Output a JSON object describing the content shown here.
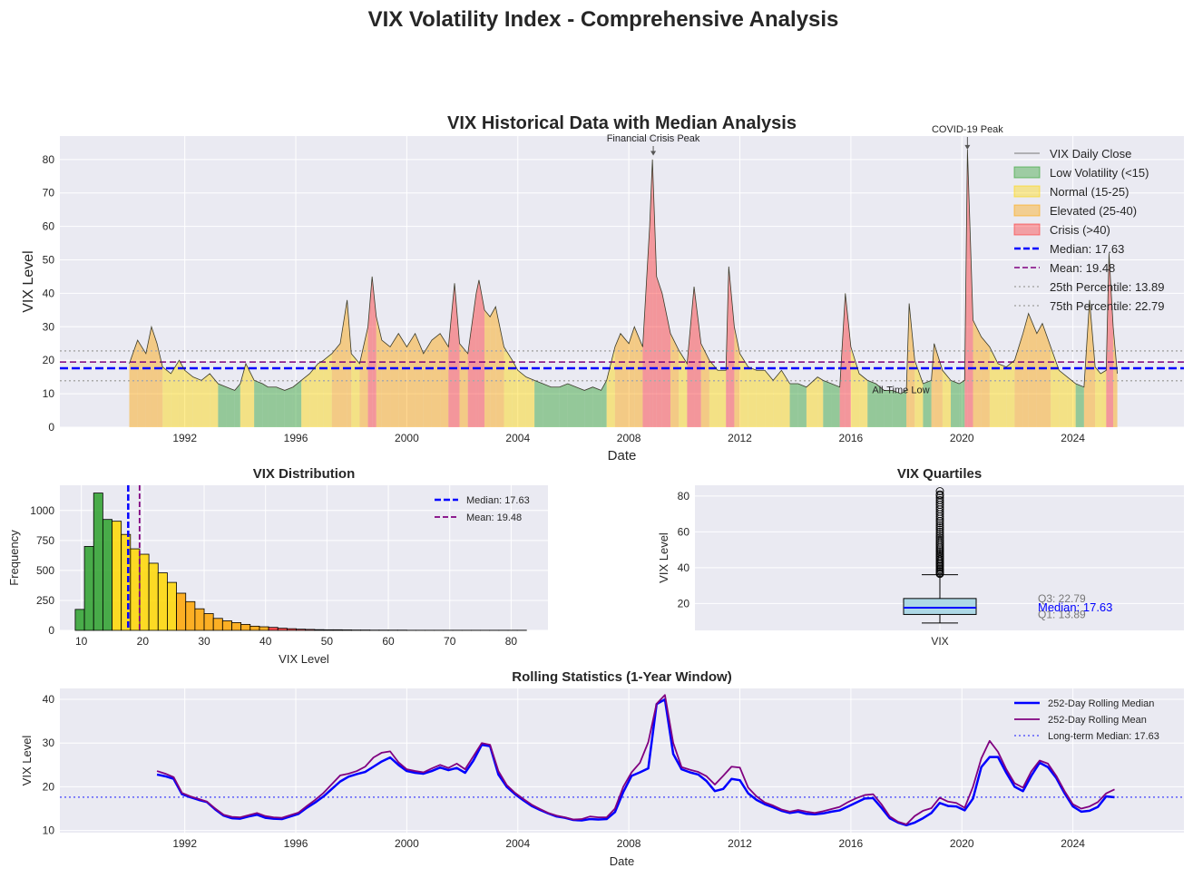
{
  "figure_title": "VIX Volatility Index - Comprehensive Analysis",
  "colors": {
    "panel_bg": "#eaeaf2",
    "grid": "#ffffff",
    "vix_line": "#3b3b2a",
    "low": "#2ca02c",
    "normal": "#ffd700",
    "elevated": "#ffa500",
    "crisis": "#ff3030",
    "median": "#0000ff",
    "mean": "#800080",
    "percentile": "#aaaaaa",
    "box_fill": "#add8e6"
  },
  "chart_data": [
    {
      "type": "line",
      "title": "VIX Historical Data with Median Analysis",
      "xlabel": "Date",
      "ylabel": "VIX Level",
      "xlim": [
        1987.5,
        2028.0
      ],
      "ylim": [
        0,
        87
      ],
      "xticks": [
        "1992",
        "1996",
        "2000",
        "2004",
        "2008",
        "2012",
        "2016",
        "2020",
        "2024"
      ],
      "yticks": [
        "0",
        "10",
        "20",
        "30",
        "40",
        "50",
        "60",
        "70",
        "80"
      ],
      "grid": true,
      "legend_position": "top-right",
      "regimes": [
        {
          "name": "Low Volatility (<15)",
          "min": 0,
          "max": 15
        },
        {
          "name": "Normal (15-25)",
          "min": 15,
          "max": 25
        },
        {
          "name": "Elevated (25-40)",
          "min": 25,
          "max": 40
        },
        {
          "name": "Crisis (>40)",
          "min": 40,
          "max": 100
        }
      ],
      "series": [
        {
          "name": "VIX Daily Close",
          "x": [
            1990.0,
            1990.3,
            1990.6,
            1990.8,
            1991.0,
            1991.2,
            1991.5,
            1991.8,
            1992.0,
            1992.3,
            1992.6,
            1992.9,
            1993.2,
            1993.5,
            1993.8,
            1994.0,
            1994.2,
            1994.5,
            1994.8,
            1995.0,
            1995.3,
            1995.6,
            1995.9,
            1996.2,
            1996.5,
            1996.8,
            1997.0,
            1997.3,
            1997.6,
            1997.85,
            1998.0,
            1998.3,
            1998.6,
            1998.75,
            1998.9,
            1999.1,
            1999.4,
            1999.7,
            2000.0,
            2000.3,
            2000.6,
            2000.9,
            2001.2,
            2001.5,
            2001.72,
            2001.9,
            2002.2,
            2002.5,
            2002.6,
            2002.8,
            2003.0,
            2003.2,
            2003.5,
            2003.8,
            2004.0,
            2004.3,
            2004.6,
            2004.9,
            2005.2,
            2005.5,
            2005.8,
            2006.1,
            2006.4,
            2006.7,
            2007.0,
            2007.2,
            2007.5,
            2007.7,
            2008.0,
            2008.2,
            2008.5,
            2008.75,
            2008.85,
            2009.0,
            2009.2,
            2009.5,
            2009.8,
            2010.1,
            2010.35,
            2010.6,
            2010.9,
            2011.2,
            2011.5,
            2011.6,
            2011.8,
            2012.0,
            2012.3,
            2012.6,
            2012.9,
            2013.2,
            2013.5,
            2013.8,
            2014.1,
            2014.4,
            2014.8,
            2015.0,
            2015.3,
            2015.6,
            2015.8,
            2016.0,
            2016.3,
            2016.6,
            2016.9,
            2017.2,
            2017.5,
            2017.8,
            2018.0,
            2018.1,
            2018.3,
            2018.6,
            2018.9,
            2019.0,
            2019.3,
            2019.6,
            2019.9,
            2020.1,
            2020.2,
            2020.4,
            2020.7,
            2021.0,
            2021.3,
            2021.6,
            2021.9,
            2022.2,
            2022.4,
            2022.7,
            2022.9,
            2023.2,
            2023.5,
            2023.8,
            2024.1,
            2024.4,
            2024.6,
            2024.8,
            2025.0,
            2025.2,
            2025.3,
            2025.45,
            2025.6
          ],
          "values": [
            19,
            26,
            22,
            30,
            25,
            18,
            16,
            20,
            17,
            15,
            14,
            16,
            13,
            12,
            11,
            13,
            19,
            14,
            13,
            12,
            12,
            11,
            12,
            14,
            16,
            19,
            20,
            22,
            25,
            38,
            22,
            19,
            30,
            45,
            33,
            26,
            24,
            28,
            24,
            28,
            22,
            26,
            28,
            24,
            43,
            25,
            22,
            40,
            44,
            35,
            33,
            36,
            24,
            20,
            17,
            15,
            14,
            13,
            12,
            12,
            13,
            12,
            11,
            12,
            11,
            14,
            24,
            28,
            25,
            30,
            24,
            60,
            80,
            45,
            40,
            28,
            23,
            19,
            42,
            25,
            20,
            17,
            17,
            48,
            30,
            22,
            18,
            17,
            17,
            14,
            17,
            13,
            13,
            12,
            15,
            14,
            13,
            12,
            40,
            24,
            16,
            14,
            13,
            11,
            11,
            10,
            11,
            37,
            20,
            13,
            14,
            25,
            17,
            14,
            13,
            14,
            83,
            32,
            27,
            24,
            19,
            18,
            20,
            28,
            34,
            28,
            31,
            24,
            17,
            15,
            13,
            12,
            38,
            18,
            16,
            17,
            52,
            30,
            16
          ]
        }
      ],
      "reference_lines": [
        {
          "name": "Median: 17.63",
          "value": 17.63,
          "style": "dashed-thick"
        },
        {
          "name": "Mean: 19.48",
          "value": 19.48,
          "style": "dashed"
        },
        {
          "name": "25th Percentile: 13.89",
          "value": 13.89,
          "style": "dotted"
        },
        {
          "name": "75th Percentile: 22.79",
          "value": 22.79,
          "style": "dotted"
        }
      ],
      "annotations": [
        {
          "text": "Financial Crisis Peak",
          "x": 2008.88,
          "y": 80.9
        },
        {
          "text": "COVID-19 Peak",
          "x": 2020.2,
          "y": 82.7
        },
        {
          "text": "All-Time Low",
          "x": 2017.8,
          "y": 9.1
        }
      ]
    },
    {
      "type": "bar",
      "title": "VIX Distribution",
      "xlabel": "VIX Level",
      "ylabel": "Frequency",
      "xlim": [
        6.5,
        86
      ],
      "ylim": [
        0,
        1210
      ],
      "xticks": [
        "10",
        "20",
        "30",
        "40",
        "50",
        "60",
        "70",
        "80"
      ],
      "yticks": [
        "0",
        "250",
        "500",
        "750",
        "1000"
      ],
      "bin_width": 1.5,
      "bin_starts": [
        9.0,
        10.5,
        12.0,
        13.5,
        15.0,
        16.5,
        18.0,
        19.5,
        21.0,
        22.5,
        24.0,
        25.5,
        27.0,
        28.5,
        30.0,
        31.5,
        33.0,
        34.5,
        36.0,
        37.5,
        39.0,
        40.5,
        42.0,
        43.5,
        45.0,
        46.5,
        48.0,
        49.5,
        51.0,
        52.5,
        54.0,
        55.5,
        57.0,
        58.5,
        60.0,
        61.5,
        63.0,
        64.5,
        66.0,
        67.5,
        69.0,
        70.5,
        72.0,
        73.5,
        75.0,
        76.5,
        78.0,
        79.5,
        81.0
      ],
      "values": [
        175,
        700,
        1145,
        925,
        910,
        800,
        680,
        635,
        560,
        480,
        400,
        310,
        240,
        180,
        140,
        100,
        80,
        65,
        50,
        35,
        30,
        25,
        18,
        14,
        10,
        8,
        6,
        5,
        5,
        4,
        3,
        3,
        2,
        2,
        2,
        2,
        1,
        1,
        1,
        1,
        1,
        1,
        1,
        1,
        1,
        1,
        1,
        1,
        1
      ],
      "legend_position": "top-right",
      "reference_lines": [
        {
          "name": "Median: 17.63",
          "value": 17.63
        },
        {
          "name": "Mean: 19.48",
          "value": 19.48
        }
      ]
    },
    {
      "type": "box",
      "title": "VIX Quartiles",
      "ylabel": "VIX Level",
      "category": "VIX",
      "ylim": [
        5,
        86
      ],
      "yticks": [
        "20",
        "40",
        "60",
        "80"
      ],
      "q1": 13.89,
      "median": 17.63,
      "q3": 22.79,
      "whisker_low": 9.1,
      "whisker_high": 36.1,
      "outliers": [
        36.5,
        37,
        37.8,
        38.5,
        39.2,
        40,
        40.8,
        41.5,
        42.3,
        43,
        43.8,
        44.6,
        45.4,
        46.2,
        47,
        47.9,
        48.8,
        49.7,
        50.6,
        51.5,
        52.5,
        53.5,
        54.5,
        55.5,
        56.6,
        57.7,
        58.8,
        60,
        61.2,
        62.4,
        63.6,
        64.8,
        66,
        67.3,
        68.6,
        69.9,
        71.2,
        72.5,
        73.8,
        75.1,
        76.4,
        77.7,
        79,
        80.3,
        80.9,
        82.7
      ],
      "labels": {
        "q3": "Q3: 22.79",
        "median": "Median: 17.63",
        "q1": "Q1: 13.89"
      }
    },
    {
      "type": "line",
      "title": "Rolling Statistics (1-Year Window)",
      "xlabel": "Date",
      "ylabel": "VIX Level",
      "xlim": [
        1987.5,
        2028.0
      ],
      "ylim": [
        9.5,
        42.5
      ],
      "xticks": [
        "1992",
        "1996",
        "2000",
        "2004",
        "2008",
        "2012",
        "2016",
        "2020",
        "2024"
      ],
      "yticks": [
        "10",
        "20",
        "30",
        "40"
      ],
      "grid": true,
      "legend_position": "top-right",
      "x": [
        1991.0,
        1991.3,
        1991.6,
        1991.9,
        1992.2,
        1992.5,
        1992.8,
        1993.1,
        1993.4,
        1993.7,
        1994.0,
        1994.3,
        1994.6,
        1994.9,
        1995.2,
        1995.5,
        1995.8,
        1996.1,
        1996.4,
        1996.7,
        1997.0,
        1997.3,
        1997.6,
        1997.9,
        1998.2,
        1998.5,
        1998.8,
        1999.1,
        1999.4,
        1999.7,
        2000.0,
        2000.3,
        2000.6,
        2000.9,
        2001.2,
        2001.5,
        2001.8,
        2002.1,
        2002.4,
        2002.7,
        2003.0,
        2003.3,
        2003.6,
        2003.9,
        2004.2,
        2004.5,
        2004.8,
        2005.1,
        2005.4,
        2005.7,
        2006.0,
        2006.3,
        2006.6,
        2006.9,
        2007.2,
        2007.5,
        2007.8,
        2008.1,
        2008.4,
        2008.7,
        2009.0,
        2009.3,
        2009.6,
        2009.9,
        2010.2,
        2010.5,
        2010.8,
        2011.1,
        2011.4,
        2011.7,
        2012.0,
        2012.3,
        2012.6,
        2012.9,
        2013.2,
        2013.5,
        2013.8,
        2014.1,
        2014.4,
        2014.7,
        2015.0,
        2015.3,
        2015.6,
        2015.9,
        2016.2,
        2016.5,
        2016.8,
        2017.1,
        2017.4,
        2017.7,
        2018.0,
        2018.3,
        2018.6,
        2018.9,
        2019.2,
        2019.5,
        2019.8,
        2020.1,
        2020.4,
        2020.7,
        2021.0,
        2021.3,
        2021.6,
        2021.9,
        2022.2,
        2022.5,
        2022.8,
        2023.1,
        2023.4,
        2023.7,
        2024.0,
        2024.3,
        2024.6,
        2024.9,
        2025.2,
        2025.5
      ],
      "series": [
        {
          "name": "252-Day Rolling Median",
          "values": [
            22.8,
            22.4,
            21.8,
            18.3,
            17.6,
            17.0,
            16.5,
            14.8,
            13.4,
            12.8,
            12.7,
            13.2,
            13.6,
            12.9,
            12.7,
            12.6,
            13.2,
            13.8,
            15.2,
            16.4,
            17.8,
            19.5,
            21.2,
            22.3,
            22.9,
            23.4,
            24.6,
            25.8,
            26.7,
            25.0,
            23.6,
            23.2,
            23.0,
            23.6,
            24.4,
            23.8,
            24.3,
            23.2,
            26.0,
            29.6,
            29.3,
            22.8,
            20.0,
            18.3,
            16.9,
            15.6,
            14.7,
            13.9,
            13.2,
            12.9,
            12.4,
            12.3,
            12.6,
            12.5,
            12.6,
            14.2,
            18.8,
            22.5,
            23.3,
            24.2,
            38.9,
            40.0,
            27.5,
            24.0,
            23.3,
            22.8,
            21.3,
            19.0,
            19.5,
            21.8,
            21.5,
            18.5,
            17.0,
            16.0,
            15.3,
            14.5,
            14.0,
            14.3,
            13.8,
            13.7,
            13.9,
            14.3,
            14.6,
            15.5,
            16.4,
            17.3,
            17.4,
            15.2,
            12.8,
            11.8,
            11.2,
            11.8,
            12.8,
            14.0,
            16.3,
            15.6,
            15.5,
            14.6,
            17.3,
            24.5,
            26.8,
            26.8,
            23.2,
            20.0,
            19.0,
            22.5,
            25.5,
            24.5,
            22.0,
            18.5,
            15.5,
            14.3,
            14.5,
            15.4,
            17.8,
            17.6
          ]
        },
        {
          "name": "252-Day Rolling Mean",
          "values": [
            23.6,
            23.0,
            22.2,
            18.6,
            17.8,
            17.2,
            16.6,
            15.0,
            13.6,
            13.1,
            13.0,
            13.5,
            14.0,
            13.3,
            13.0,
            12.9,
            13.5,
            14.1,
            15.6,
            17.0,
            18.6,
            20.6,
            22.6,
            23.0,
            23.6,
            24.6,
            26.7,
            27.8,
            28.1,
            25.6,
            24.0,
            23.6,
            23.3,
            24.2,
            25.0,
            24.3,
            25.3,
            24.0,
            27.0,
            30.0,
            29.6,
            23.6,
            20.4,
            18.6,
            17.2,
            15.9,
            14.9,
            14.0,
            13.4,
            13.0,
            12.5,
            12.6,
            13.2,
            13.0,
            13.0,
            15.0,
            20.0,
            23.3,
            25.5,
            30.2,
            39.0,
            41.0,
            30.0,
            24.5,
            23.9,
            23.4,
            22.4,
            20.5,
            22.5,
            24.6,
            24.4,
            19.8,
            17.8,
            16.4,
            15.7,
            14.8,
            14.3,
            14.7,
            14.3,
            14.0,
            14.4,
            14.9,
            15.4,
            16.5,
            17.4,
            18.1,
            18.3,
            16.0,
            13.2,
            12.0,
            11.4,
            13.3,
            14.5,
            15.1,
            17.5,
            16.6,
            16.3,
            15.2,
            20.0,
            26.5,
            30.5,
            28.0,
            24.0,
            20.8,
            19.8,
            23.5,
            26.0,
            25.3,
            22.5,
            19.0,
            16.0,
            15.0,
            15.5,
            16.5,
            18.5,
            19.4
          ]
        }
      ],
      "reference_lines": [
        {
          "name": "Long-term Median: 17.63",
          "value": 17.63
        }
      ]
    }
  ]
}
